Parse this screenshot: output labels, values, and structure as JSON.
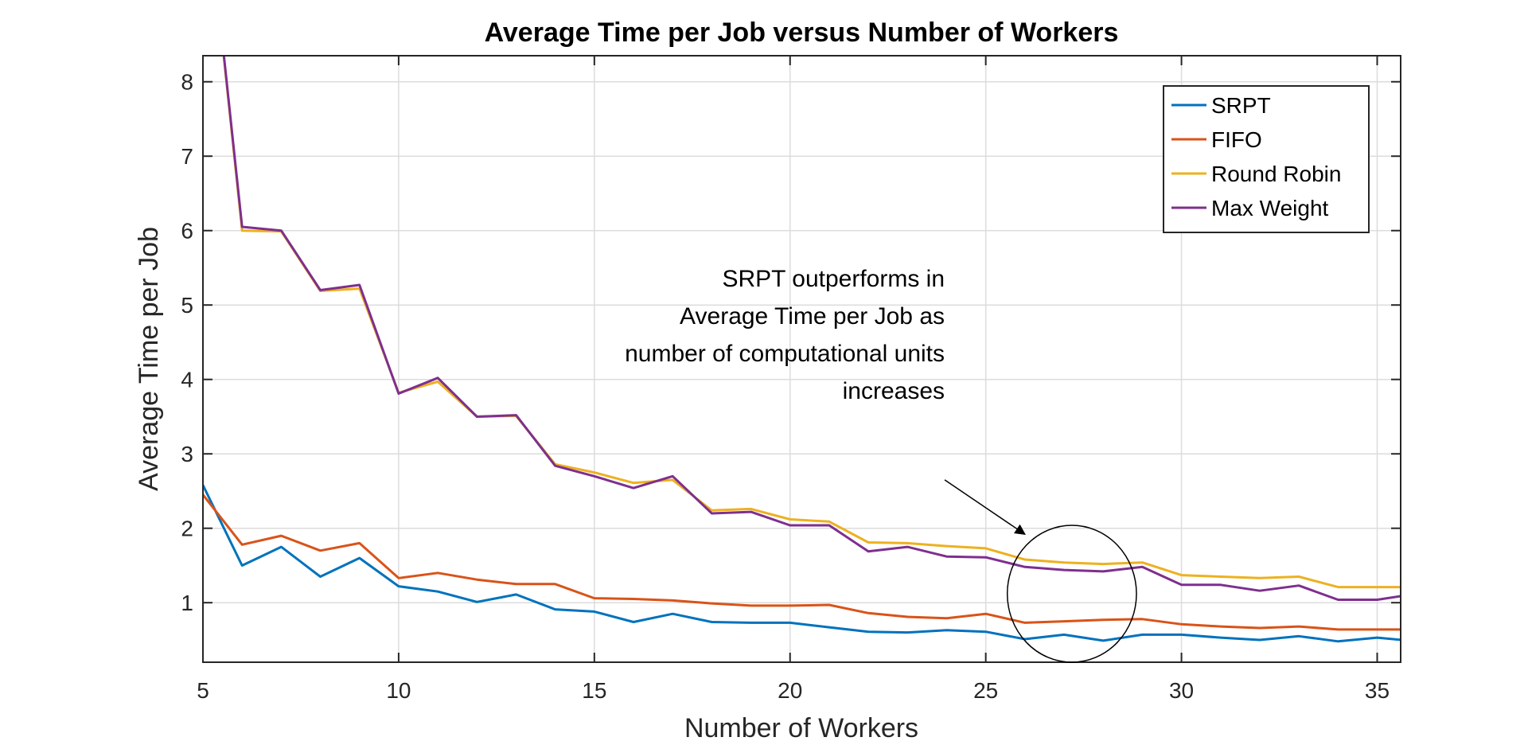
{
  "chart_data": {
    "type": "line",
    "title": "Average Time per Job versus Number of Workers",
    "xlabel": "Number of Workers",
    "ylabel": "Average Time per Job",
    "xlim": [
      5,
      35.6
    ],
    "ylim": [
      0.2,
      8.35
    ],
    "xticks": [
      5,
      10,
      15,
      20,
      25,
      30,
      35
    ],
    "yticks": [
      1,
      2,
      3,
      4,
      5,
      6,
      7,
      8
    ],
    "grid": true,
    "legend_position": "top-right",
    "x": [
      5,
      6,
      7,
      8,
      9,
      10,
      11,
      12,
      13,
      14,
      15,
      16,
      17,
      18,
      19,
      20,
      21,
      22,
      23,
      24,
      25,
      26,
      27,
      28,
      29,
      30,
      31,
      32,
      33,
      34,
      35,
      36
    ],
    "series": [
      {
        "name": "SRPT",
        "color": "#0072BD",
        "values": [
          2.58,
          1.5,
          1.75,
          1.35,
          1.6,
          1.22,
          1.15,
          1.01,
          1.11,
          0.91,
          0.88,
          0.74,
          0.85,
          0.74,
          0.73,
          0.73,
          0.67,
          0.61,
          0.6,
          0.63,
          0.61,
          0.51,
          0.57,
          0.49,
          0.57,
          0.57,
          0.53,
          0.5,
          0.55,
          0.48,
          0.53,
          0.48
        ]
      },
      {
        "name": "FIFO",
        "color": "#D95319",
        "values": [
          2.45,
          1.78,
          1.9,
          1.7,
          1.8,
          1.33,
          1.4,
          1.31,
          1.25,
          1.25,
          1.06,
          1.05,
          1.03,
          0.99,
          0.96,
          0.96,
          0.97,
          0.86,
          0.81,
          0.79,
          0.85,
          0.73,
          0.75,
          0.77,
          0.78,
          0.71,
          0.68,
          0.66,
          0.68,
          0.64,
          0.64,
          0.64
        ]
      },
      {
        "name": "Round Robin",
        "color": "#EDB120",
        "values": [
          11.0,
          6.0,
          5.99,
          5.19,
          5.22,
          3.82,
          3.97,
          3.5,
          3.51,
          2.86,
          2.75,
          2.61,
          2.65,
          2.24,
          2.26,
          2.12,
          2.09,
          1.81,
          1.8,
          1.76,
          1.73,
          1.58,
          1.54,
          1.52,
          1.54,
          1.37,
          1.35,
          1.33,
          1.35,
          1.21,
          1.21,
          1.21
        ]
      },
      {
        "name": "Max Weight",
        "color": "#7E2F8E",
        "values": [
          11.0,
          6.05,
          6.0,
          5.2,
          5.27,
          3.81,
          4.02,
          3.5,
          3.52,
          2.84,
          2.7,
          2.54,
          2.7,
          2.2,
          2.22,
          2.04,
          2.04,
          1.69,
          1.75,
          1.62,
          1.61,
          1.48,
          1.44,
          1.42,
          1.48,
          1.24,
          1.24,
          1.16,
          1.23,
          1.04,
          1.04,
          1.12
        ]
      }
    ],
    "annotation": {
      "lines": [
        "SRPT outperforms in",
        "Average Time per Job as",
        "number of computational units",
        "increases"
      ],
      "circle_center": [
        27.2,
        1.12
      ],
      "circle_radius": [
        1.65,
        0.92
      ],
      "arrow_from": [
        23.95,
        2.65
      ],
      "arrow_to": [
        26.0,
        1.92
      ]
    }
  }
}
